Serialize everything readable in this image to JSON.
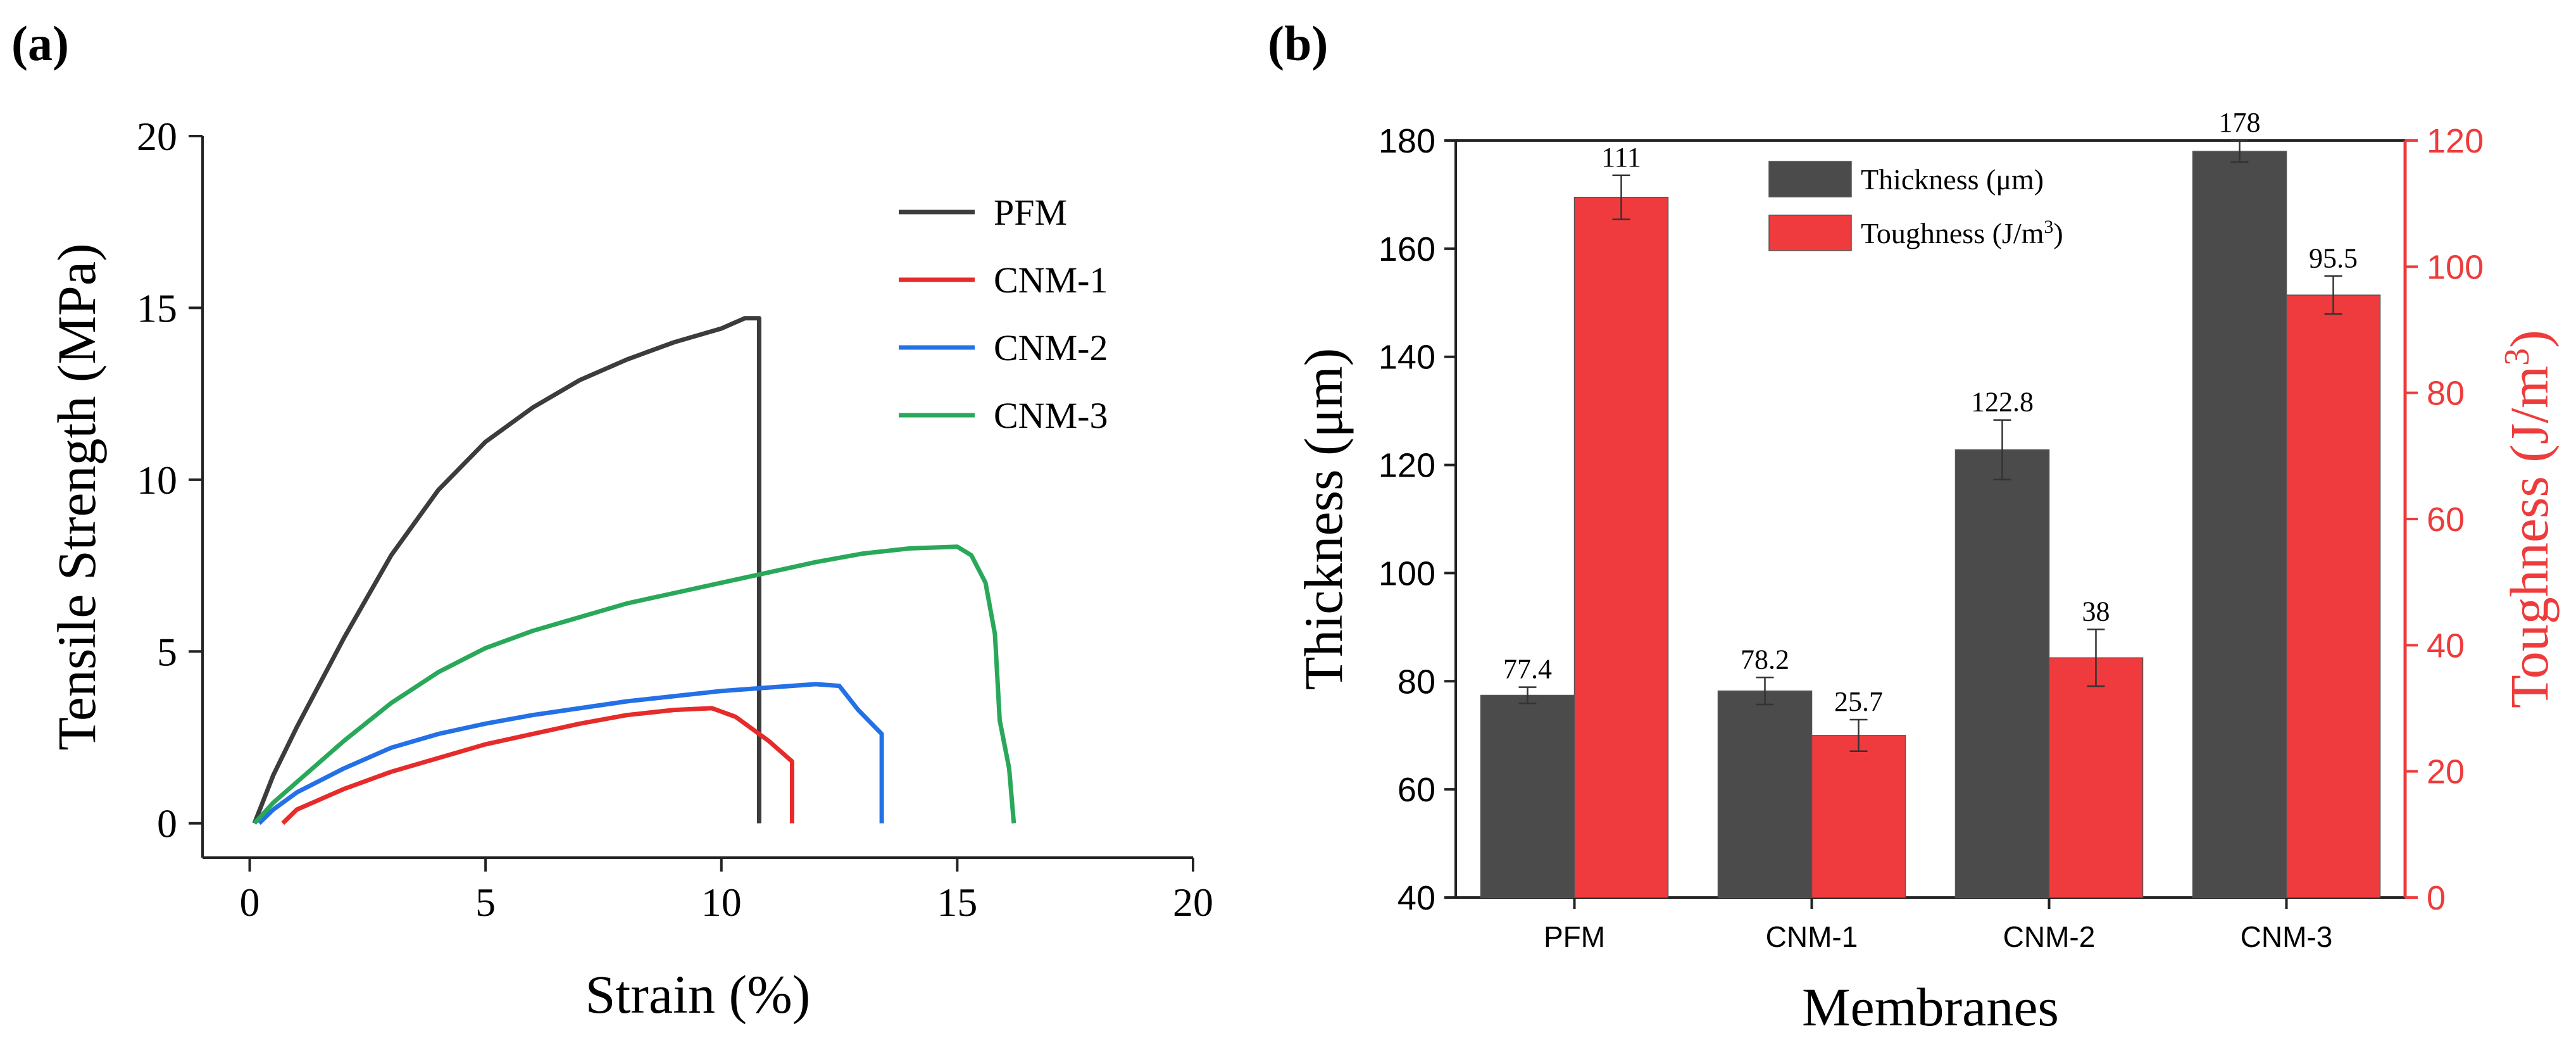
{
  "panel_labels": {
    "a": "(a)",
    "b": "(b)"
  },
  "colors": {
    "pfm": "#3c3c3c",
    "cnm1": "#e62b2b",
    "cnm2": "#2470e6",
    "cnm3": "#2aa85a",
    "thickness_bar": "#4b4b4b",
    "toughness_bar": "#ef3b3d",
    "right_axis": "#ee3b3b"
  },
  "chart_data": [
    {
      "type": "line",
      "title": "",
      "xlabel": "Strain (%)",
      "ylabel": "Tensile Strength (MPa)",
      "xlim": [
        -1,
        20
      ],
      "ylim": [
        -1,
        20
      ],
      "xticks": [
        0,
        5,
        10,
        15,
        20
      ],
      "yticks": [
        0,
        5,
        10,
        15,
        20
      ],
      "legend_position": "top-right",
      "series": [
        {
          "name": "PFM",
          "color_key": "pfm",
          "points": [
            [
              0.1,
              0
            ],
            [
              0.5,
              1.4
            ],
            [
              1,
              2.8
            ],
            [
              2,
              5.4
            ],
            [
              3,
              7.8
            ],
            [
              4,
              9.7
            ],
            [
              5,
              11.1
            ],
            [
              6,
              12.1
            ],
            [
              7,
              12.9
            ],
            [
              8,
              13.5
            ],
            [
              9,
              14
            ],
            [
              10,
              14.4
            ],
            [
              10.5,
              14.7
            ],
            [
              10.8,
              14.7
            ],
            [
              10.8,
              8.8
            ],
            [
              10.8,
              0
            ]
          ]
        },
        {
          "name": "CNM-1",
          "color_key": "cnm1",
          "points": [
            [
              0.7,
              0
            ],
            [
              1,
              0.4
            ],
            [
              2,
              1
            ],
            [
              3,
              1.5
            ],
            [
              4,
              1.9
            ],
            [
              5,
              2.3
            ],
            [
              6,
              2.6
            ],
            [
              7,
              2.9
            ],
            [
              8,
              3.15
            ],
            [
              9,
              3.3
            ],
            [
              9.8,
              3.35
            ],
            [
              10.3,
              3.1
            ],
            [
              11,
              2.4
            ],
            [
              11.5,
              1.8
            ],
            [
              11.5,
              0
            ]
          ]
        },
        {
          "name": "CNM-2",
          "color_key": "cnm2",
          "points": [
            [
              0.2,
              0
            ],
            [
              0.5,
              0.4
            ],
            [
              1,
              0.9
            ],
            [
              2,
              1.6
            ],
            [
              3,
              2.2
            ],
            [
              4,
              2.6
            ],
            [
              5,
              2.9
            ],
            [
              6,
              3.15
            ],
            [
              7,
              3.35
            ],
            [
              8,
              3.55
            ],
            [
              9,
              3.7
            ],
            [
              10,
              3.85
            ],
            [
              11,
              3.95
            ],
            [
              12,
              4.05
            ],
            [
              12.5,
              4
            ],
            [
              12.9,
              3.3
            ],
            [
              13.4,
              2.6
            ],
            [
              13.4,
              0
            ]
          ]
        },
        {
          "name": "CNM-3",
          "color_key": "cnm3",
          "points": [
            [
              0.1,
              0
            ],
            [
              0.5,
              0.6
            ],
            [
              1,
              1.2
            ],
            [
              2,
              2.4
            ],
            [
              3,
              3.5
            ],
            [
              4,
              4.4
            ],
            [
              5,
              5.1
            ],
            [
              6,
              5.6
            ],
            [
              7,
              6
            ],
            [
              8,
              6.4
            ],
            [
              9,
              6.7
            ],
            [
              10,
              7
            ],
            [
              11,
              7.3
            ],
            [
              12,
              7.6
            ],
            [
              13,
              7.85
            ],
            [
              14,
              8
            ],
            [
              15,
              8.05
            ],
            [
              15.3,
              7.8
            ],
            [
              15.6,
              7
            ],
            [
              15.8,
              5.5
            ],
            [
              15.9,
              3
            ],
            [
              16.1,
              1.6
            ],
            [
              16.2,
              0
            ]
          ]
        }
      ]
    },
    {
      "type": "bar",
      "title": "",
      "xlabel": "Membranes",
      "ylabel": "Thickness (μm)",
      "y2label": "Toughness (J/m³)",
      "y2label_main": "Toughness (J/m",
      "y2label_sup": "3",
      "y2label_end": ")",
      "categories": [
        "PFM",
        "CNM-1",
        "CNM-2",
        "CNM-3"
      ],
      "ylim": [
        40,
        180
      ],
      "yticks": [
        40,
        60,
        80,
        100,
        120,
        140,
        160,
        180
      ],
      "y2lim": [
        0,
        120
      ],
      "y2ticks": [
        0,
        20,
        40,
        60,
        80,
        100,
        120
      ],
      "legend_position": "top-center",
      "series": [
        {
          "name": "Thickness (μm)",
          "axis": "left",
          "color_key": "thickness_bar",
          "values": [
            77.4,
            78.2,
            122.8,
            178
          ],
          "errors": [
            1.5,
            2.5,
            5.5,
            2
          ],
          "labels": [
            "77.4",
            "78.2",
            "122.8",
            "178"
          ]
        },
        {
          "name": "Toughness (J/m³)",
          "name_main": "Toughness (J/m",
          "name_sup": "3",
          "name_end": ")",
          "axis": "right",
          "color_key": "toughness_bar",
          "values": [
            111,
            25.7,
            38,
            95.5
          ],
          "errors": [
            3.5,
            2.5,
            4.5,
            3
          ],
          "labels": [
            "111",
            "25.7",
            "38",
            "95.5"
          ]
        }
      ]
    }
  ]
}
